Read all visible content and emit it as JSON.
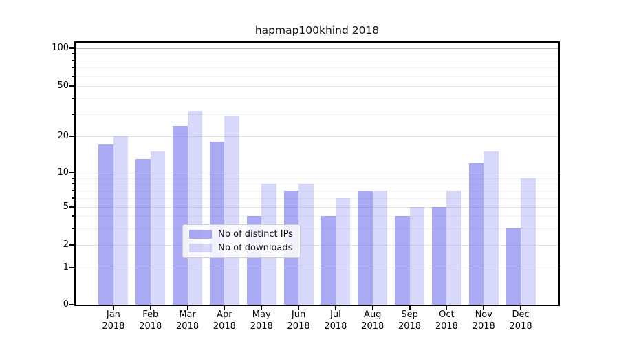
{
  "chart_data": {
    "type": "bar",
    "title": "hapmap100khind 2018",
    "categories": [
      "Jan",
      "Feb",
      "Mar",
      "Apr",
      "May",
      "Jun",
      "Jul",
      "Aug",
      "Sep",
      "Oct",
      "Nov",
      "Dec"
    ],
    "category_year": "2018",
    "series": [
      {
        "name": "Nb of distinct IPs",
        "color": "rgba(100,100,235,0.55)",
        "values": [
          17,
          13,
          24,
          18,
          4,
          7,
          4,
          7,
          4,
          5,
          12,
          3
        ]
      },
      {
        "name": "Nb of downloads",
        "color": "rgba(100,100,235,0.25)",
        "values": [
          20,
          15,
          32,
          29,
          8,
          8,
          6,
          7,
          5,
          7,
          15,
          9
        ]
      }
    ],
    "yscale": "symlog",
    "ylim": [
      0,
      110
    ],
    "y_tick_values": [
      100,
      50,
      20,
      10,
      5,
      2,
      1,
      0
    ],
    "y_decade_values": [
      100,
      10,
      1
    ],
    "y_minor_values": [
      3,
      4,
      6,
      7,
      8,
      9,
      30,
      40,
      60,
      70,
      80,
      90
    ],
    "grid": true,
    "legend_position": "lower center",
    "xlabel": "",
    "ylabel": ""
  }
}
